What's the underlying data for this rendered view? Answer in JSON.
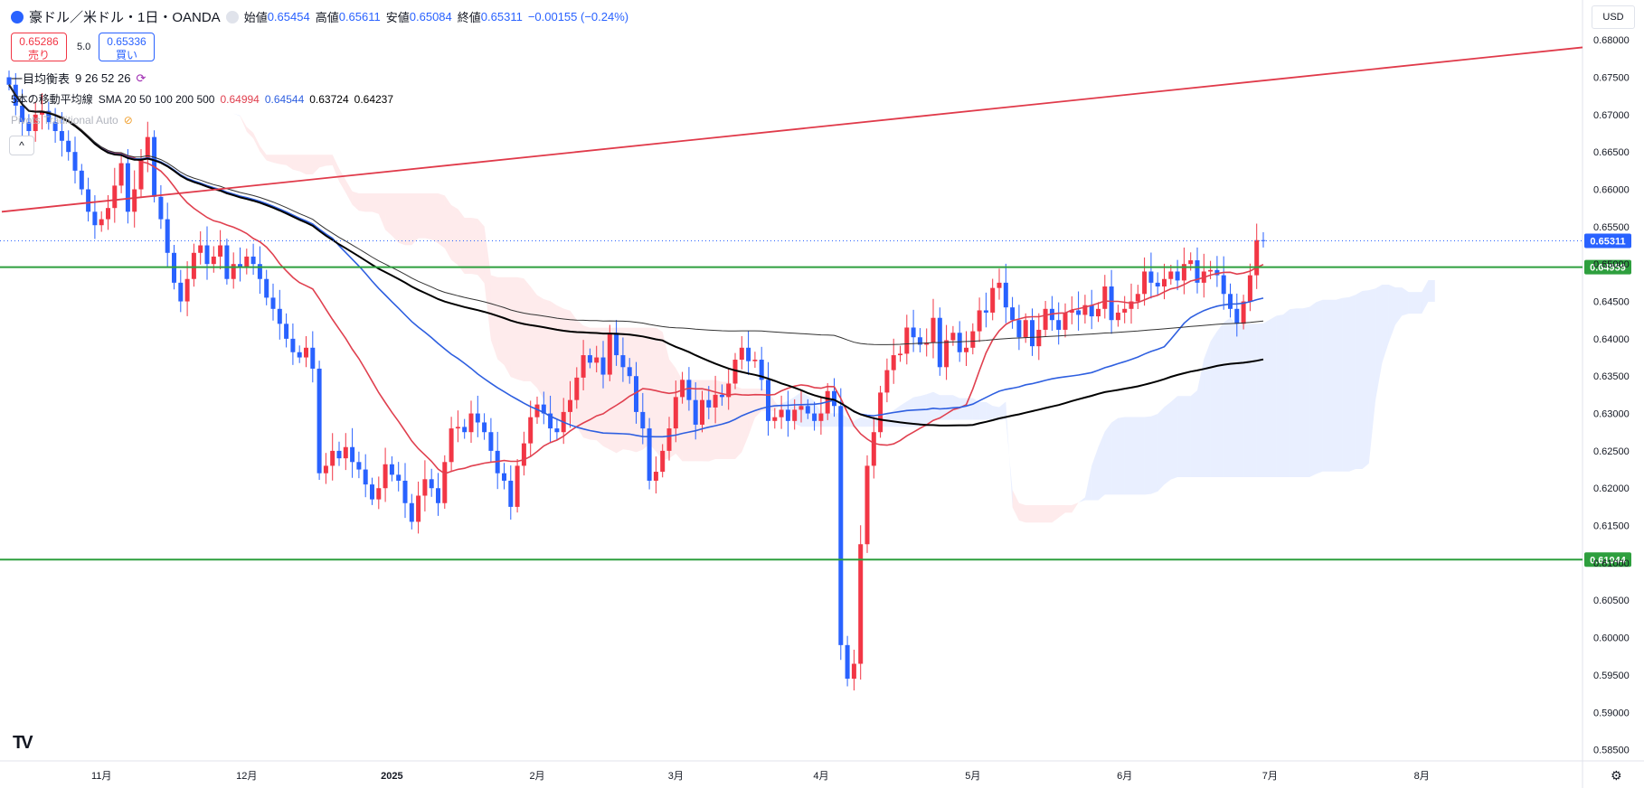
{
  "header": {
    "symbol": "豪ドル／米ドル・1日・OANDA",
    "open_label": "始値",
    "open": "0.65454",
    "high_label": "高値",
    "high": "0.65611",
    "low_label": "安値",
    "low": "0.65084",
    "close_label": "終値",
    "close": "0.65311",
    "change": "−0.00155 (−0.24%)"
  },
  "trade": {
    "sell_price": "0.65286",
    "sell_label": "売り",
    "spread": "5.0",
    "buy_price": "0.65336",
    "buy_label": "買い"
  },
  "indicators": {
    "ichimoku": "一目均衡表",
    "ichimoku_params": "9 26 52 26",
    "sma": "5本の移動平均線",
    "sma_params": "SMA 20 50 100 200 500",
    "sma_values": [
      "0.64994",
      "0.64544",
      "0.63724",
      "0.64237"
    ],
    "pivots": "Pivots Traditional Auto"
  },
  "currency": "USD",
  "colors": {
    "up": "#f23645",
    "down": "#2962ff",
    "sma20": "#e0404f",
    "sma50": "#2e5fe0",
    "sma100": "#000000",
    "sma200": "#333333",
    "level": "#2e9f3e"
  },
  "chart_data": {
    "type": "line",
    "title": "豪ドル／米ドル・1日・OANDA",
    "x_ticks": [
      "11月",
      "12月",
      "2025",
      "2月",
      "3月",
      "4月",
      "5月",
      "6月",
      "7月",
      "8月"
    ],
    "y_ticks": [
      "0.68000",
      "0.67500",
      "0.67000",
      "0.66500",
      "0.66000",
      "0.65500",
      "0.65000",
      "0.64500",
      "0.64000",
      "0.63500",
      "0.63000",
      "0.62500",
      "0.62000",
      "0.61500",
      "0.61000",
      "0.60500",
      "0.60000",
      "0.59500",
      "0.59000",
      "0.58500"
    ],
    "ylim": [
      0.5835,
      0.6851
    ],
    "x_tick_index": [
      14,
      36,
      58,
      80,
      101,
      123,
      146,
      169,
      191,
      214
    ],
    "last_price": 0.65311,
    "last_price_label": "0.65311",
    "levels": [
      {
        "value": 0.64959,
        "label": "0.64959"
      },
      {
        "value": 0.61044,
        "label": "0.61044"
      }
    ],
    "trendline": {
      "from": [
        0,
        0.657
      ],
      "to": [
        220,
        0.679
      ]
    },
    "closes": [
      0.674,
      0.6712,
      0.669,
      0.6678,
      0.67,
      0.6705,
      0.669,
      0.6678,
      0.6665,
      0.665,
      0.6625,
      0.66,
      0.657,
      0.6552,
      0.656,
      0.6575,
      0.6605,
      0.6635,
      0.657,
      0.66,
      0.664,
      0.667,
      0.659,
      0.656,
      0.6515,
      0.6475,
      0.645,
      0.648,
      0.6515,
      0.6525,
      0.65,
      0.651,
      0.6525,
      0.648,
      0.65,
      0.6495,
      0.651,
      0.65,
      0.648,
      0.6455,
      0.644,
      0.642,
      0.64,
      0.6382,
      0.6375,
      0.6388,
      0.636,
      0.622,
      0.623,
      0.625,
      0.624,
      0.6255,
      0.6235,
      0.6225,
      0.6205,
      0.6185,
      0.62,
      0.6232,
      0.6218,
      0.621,
      0.618,
      0.6155,
      0.619,
      0.6212,
      0.62,
      0.618,
      0.6235,
      0.628,
      0.6282,
      0.6275,
      0.63,
      0.6288,
      0.6275,
      0.625,
      0.622,
      0.621,
      0.6175,
      0.623,
      0.626,
      0.6295,
      0.6312,
      0.63,
      0.628,
      0.6275,
      0.6302,
      0.6318,
      0.6348,
      0.6378,
      0.6368,
      0.6375,
      0.6352,
      0.6408,
      0.6378,
      0.6362,
      0.635,
      0.6302,
      0.628,
      0.621,
      0.6222,
      0.625,
      0.628,
      0.6322,
      0.6345,
      0.6318,
      0.6285,
      0.6318,
      0.6308,
      0.6325,
      0.6322,
      0.634,
      0.6372,
      0.6388,
      0.637,
      0.6372,
      0.6345,
      0.629,
      0.6295,
      0.6305,
      0.629,
      0.6305,
      0.631,
      0.63,
      0.629,
      0.63,
      0.633,
      0.631,
      0.599,
      0.5945,
      0.5965,
      0.6125,
      0.623,
      0.6275,
      0.6328,
      0.6358,
      0.6378,
      0.638,
      0.6415,
      0.6402,
      0.6392,
      0.6395,
      0.6428,
      0.6362,
      0.6398,
      0.6408,
      0.6382,
      0.6388,
      0.641,
      0.6438,
      0.6435,
      0.6468,
      0.6475,
      0.6442,
      0.6425,
      0.6402,
      0.6425,
      0.639,
      0.6412,
      0.644,
      0.6425,
      0.6412,
      0.6435,
      0.6438,
      0.6432,
      0.6445,
      0.643,
      0.644,
      0.647,
      0.6425,
      0.6435,
      0.644,
      0.645,
      0.646,
      0.649,
      0.6475,
      0.647,
      0.648,
      0.649,
      0.6478,
      0.65,
      0.6505,
      0.6475,
      0.649,
      0.6492,
      0.6485,
      0.646,
      0.644,
      0.642,
      0.645,
      0.6485,
      0.6532,
      0.6531
    ],
    "sma20_end": 0.64994,
    "sma50_end": 0.64544,
    "sma100_end": 0.63724,
    "sma200_end": 0.64237
  }
}
